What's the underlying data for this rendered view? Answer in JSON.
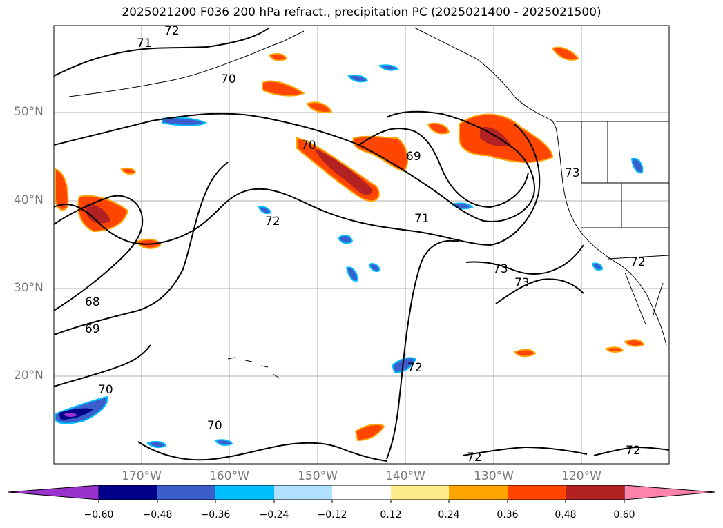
{
  "title": "2025021200 F036 200 hPa refract., precipitation PC (2025021400 - 2025021500)",
  "map": {
    "lat_labels": [
      "50°N",
      "40°N",
      "30°N",
      "20°N"
    ],
    "lon_labels": [
      "170°W",
      "160°W",
      "150°W",
      "140°W",
      "130°W",
      "120°W"
    ],
    "contour_labels": [
      "72",
      "71",
      "70",
      "70",
      "69",
      "71",
      "72",
      "73",
      "73",
      "73",
      "72",
      "68",
      "69",
      "70",
      "70",
      "72",
      "72",
      "72"
    ],
    "grid_color": "#b0b0b0",
    "label_color": "#7a7a7a"
  },
  "colorbar": {
    "ticks": [
      "−0.60",
      "−0.48",
      "−0.36",
      "−0.24",
      "−0.12",
      "0.12",
      "0.24",
      "0.36",
      "0.48",
      "0.60"
    ],
    "colors": [
      "#9932cc",
      "#00008b",
      "#3a5fcd",
      "#00bfff",
      "#b0e2ff",
      "#ffffff",
      "#ffec8b",
      "#ffa500",
      "#ff4500",
      "#b22222",
      "#ff82ab"
    ]
  }
}
